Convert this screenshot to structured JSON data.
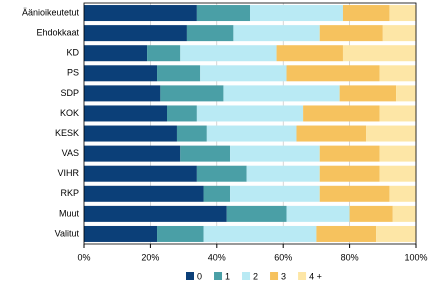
{
  "chart_data": {
    "type": "stacked-bar-horizontal",
    "categories": [
      "Äänioikeutetut",
      "Ehdokkaat",
      "KD",
      "PS",
      "SDP",
      "KOK",
      "KESK",
      "VAS",
      "VIHR",
      "RKP",
      "Muut",
      "Valitut"
    ],
    "series": [
      {
        "name": "0",
        "color": "#0b3f78",
        "values": [
          34,
          31,
          19,
          22,
          23,
          25,
          28,
          29,
          34,
          36,
          43,
          22
        ]
      },
      {
        "name": "1",
        "color": "#4a9fa6",
        "values": [
          16,
          14,
          10,
          13,
          19,
          9,
          9,
          15,
          15,
          8,
          18,
          14
        ]
      },
      {
        "name": "2",
        "color": "#b9eaf4",
        "values": [
          28,
          26,
          29,
          26,
          35,
          32,
          27,
          27,
          22,
          27,
          19,
          34
        ]
      },
      {
        "name": "3",
        "color": "#f6c25e",
        "values": [
          14,
          19,
          20,
          28,
          17,
          23,
          21,
          18,
          18,
          21,
          13,
          18
        ]
      },
      {
        "name": "4 +",
        "color": "#fde6a6",
        "values": [
          8,
          10,
          22,
          11,
          6,
          11,
          15,
          11,
          11,
          8,
          7,
          12
        ]
      }
    ],
    "xlim": [
      0,
      100
    ],
    "xticks": [
      {
        "value": 0,
        "label": "0%"
      },
      {
        "value": 20,
        "label": "20%"
      },
      {
        "value": 40,
        "label": "40%"
      },
      {
        "value": 60,
        "label": "60%"
      },
      {
        "value": 80,
        "label": "80%"
      },
      {
        "value": 100,
        "label": "100%"
      }
    ],
    "grid": true
  }
}
